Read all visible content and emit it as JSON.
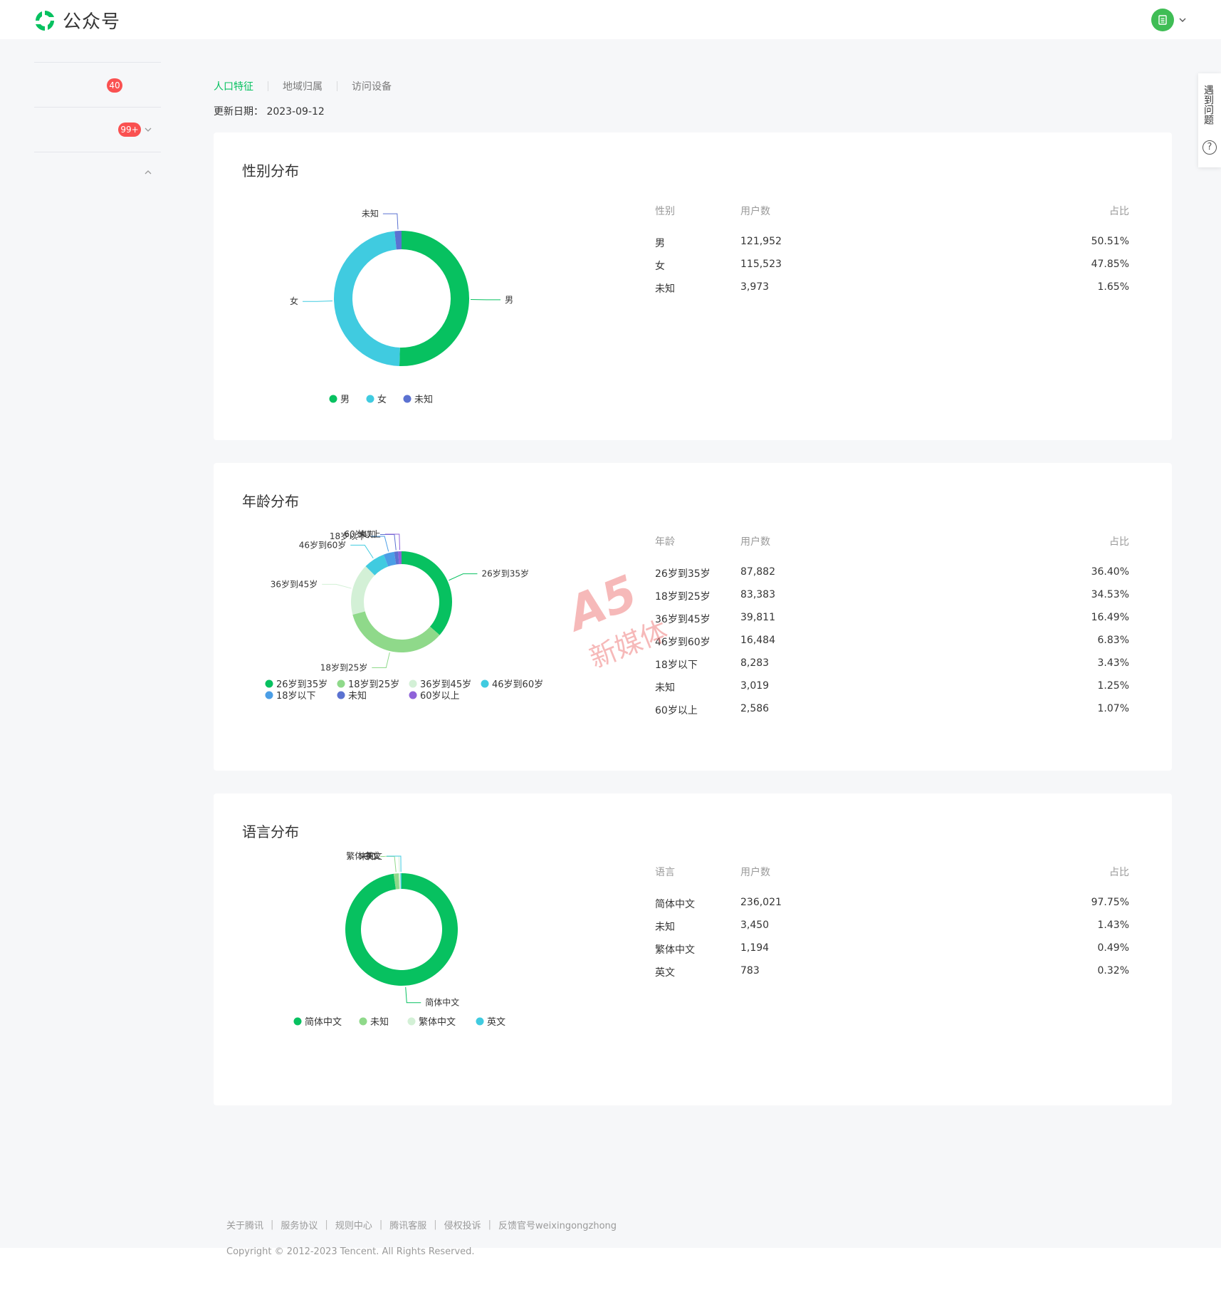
{
  "header": {
    "logo_text": "公众号"
  },
  "sidebar": {
    "badge_1": "40",
    "badge_2": "99+"
  },
  "help": {
    "text": "遇到问题",
    "icon": "?"
  },
  "tabs": [
    {
      "label": "人口特征",
      "active": true
    },
    {
      "label": "地域归属",
      "active": false
    },
    {
      "label": "访问设备",
      "active": false
    }
  ],
  "update": {
    "label": "更新日期：",
    "date": "2023-09-12"
  },
  "gender": {
    "title": "性别分布",
    "headers": [
      "性别",
      "用户数",
      "占比"
    ],
    "rows": [
      [
        "男",
        "121,952",
        "50.51%"
      ],
      [
        "女",
        "115,523",
        "47.85%"
      ],
      [
        "未知",
        "3,973",
        "1.65%"
      ]
    ]
  },
  "age": {
    "title": "年龄分布",
    "headers": [
      "年龄",
      "用户数",
      "占比"
    ],
    "rows": [
      [
        "26岁到35岁",
        "87,882",
        "36.40%"
      ],
      [
        "18岁到25岁",
        "83,383",
        "34.53%"
      ],
      [
        "36岁到45岁",
        "39,811",
        "16.49%"
      ],
      [
        "46岁到60岁",
        "16,484",
        "6.83%"
      ],
      [
        "18岁以下",
        "8,283",
        "3.43%"
      ],
      [
        "未知",
        "3,019",
        "1.25%"
      ],
      [
        "60岁以上",
        "2,586",
        "1.07%"
      ]
    ]
  },
  "language": {
    "title": "语言分布",
    "headers": [
      "语言",
      "用户数",
      "占比"
    ],
    "rows": [
      [
        "简体中文",
        "236,021",
        "97.75%"
      ],
      [
        "未知",
        "3,450",
        "1.43%"
      ],
      [
        "繁体中文",
        "1,194",
        "0.49%"
      ],
      [
        "英文",
        "783",
        "0.32%"
      ]
    ]
  },
  "chart_data": [
    {
      "type": "pie",
      "title": "",
      "categories": [
        "男",
        "女",
        "未知"
      ],
      "values": [
        121952,
        115523,
        3973
      ],
      "colors": [
        "#07c160",
        "#40cbe0",
        "#5b72d1"
      ],
      "legend_position": "bottom"
    },
    {
      "type": "pie",
      "title": "",
      "categories": [
        "26岁到35岁",
        "18岁到25岁",
        "36岁到45岁",
        "46岁到60岁",
        "18岁以下",
        "未知",
        "60岁以上"
      ],
      "values": [
        87882,
        83383,
        39811,
        16484,
        8283,
        3019,
        2586
      ],
      "colors": [
        "#07c160",
        "#8fd98a",
        "#d3f0d6",
        "#40cbe0",
        "#4b9ee6",
        "#5b72d1",
        "#8f63d9"
      ],
      "legend_position": "bottom"
    },
    {
      "type": "pie",
      "title": "",
      "categories": [
        "简体中文",
        "未知",
        "繁体中文",
        "英文"
      ],
      "values": [
        236021,
        3450,
        1194,
        783
      ],
      "colors": [
        "#07c160",
        "#8fd98a",
        "#d3f0d6",
        "#40cbe0"
      ],
      "legend_position": "bottom"
    }
  ],
  "watermark": {
    "line1": "A5",
    "line2": "新媒体"
  },
  "footer": {
    "links": [
      "关于腾讯",
      "服务协议",
      "规则中心",
      "腾讯客服",
      "侵权投诉",
      "反馈官号weixingongzhong"
    ],
    "copyright": "Copyright © 2012-2023 Tencent. All Rights Reserved."
  }
}
